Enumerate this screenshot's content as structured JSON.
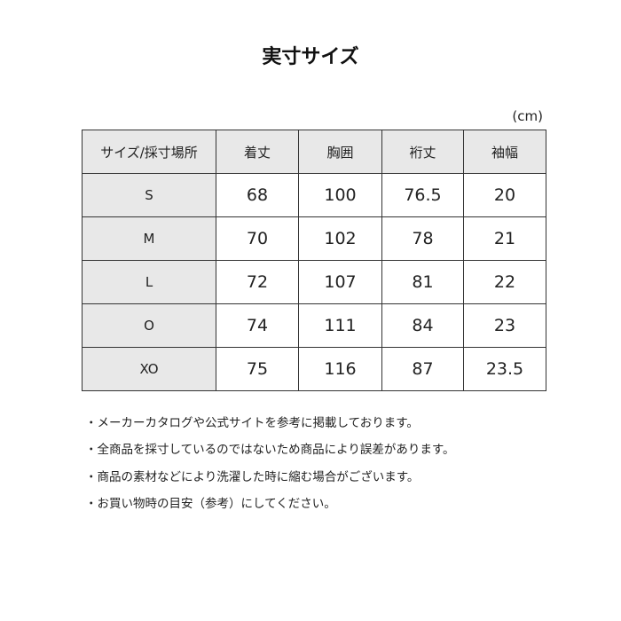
{
  "title": "実寸サイズ",
  "unit": "(cm)",
  "table": {
    "headers": [
      "サイズ/採寸場所",
      "着丈",
      "胸囲",
      "裄丈",
      "袖幅"
    ],
    "rows": [
      [
        "S",
        "68",
        "100",
        "76.5",
        "20"
      ],
      [
        "M",
        "70",
        "102",
        "78",
        "21"
      ],
      [
        "L",
        "72",
        "107",
        "81",
        "22"
      ],
      [
        "O",
        "74",
        "111",
        "84",
        "23"
      ],
      [
        "XO",
        "75",
        "116",
        "87",
        "23.5"
      ]
    ]
  },
  "notes": [
    "・メーカーカタログや公式サイトを参考に掲載しております。",
    "・全商品を採寸しているのではないため商品により誤差があります。",
    "・商品の素材などにより洗濯した時に縮む場合がございます。",
    "・お買い物時の目安（参考）にしてください。"
  ]
}
